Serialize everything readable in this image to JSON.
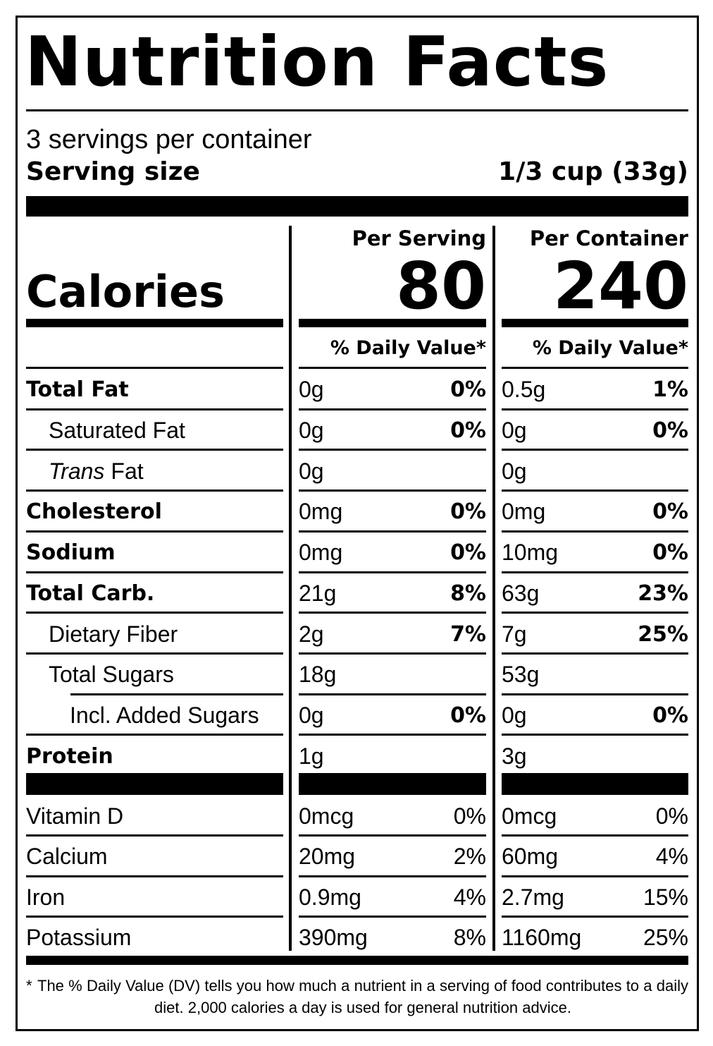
{
  "title": "Nutrition Facts",
  "servings": "3 servings per container",
  "serving_size": {
    "label": "Serving size",
    "value": "1/3 cup (33g)"
  },
  "calories": {
    "label": "Calories",
    "columns": [
      {
        "header": "Per Serving",
        "value": "80",
        "dv_header": "% Daily Value*"
      },
      {
        "header": "Per Container",
        "value": "240",
        "dv_header": "% Daily Value*"
      }
    ]
  },
  "nutrients": [
    {
      "name": "Total Fat",
      "columns": [
        {
          "amount": "0g",
          "dv": "0%"
        },
        {
          "amount": "0.5g",
          "dv": "1%"
        }
      ]
    },
    {
      "name": "Saturated Fat",
      "columns": [
        {
          "amount": "0g",
          "dv": "0%"
        },
        {
          "amount": "0g",
          "dv": "0%"
        }
      ]
    },
    {
      "name_italic": "Trans",
      "name": "Fat",
      "columns": [
        {
          "amount": "0g"
        },
        {
          "amount": "0g"
        }
      ]
    },
    {
      "name": "Cholesterol",
      "columns": [
        {
          "amount": "0mg",
          "dv": "0%"
        },
        {
          "amount": "0mg",
          "dv": "0%"
        }
      ]
    },
    {
      "name": "Sodium",
      "columns": [
        {
          "amount": "0mg",
          "dv": "0%"
        },
        {
          "amount": "10mg",
          "dv": "0%"
        }
      ]
    },
    {
      "name": "Total Carb.",
      "columns": [
        {
          "amount": "21g",
          "dv": "8%"
        },
        {
          "amount": "63g",
          "dv": "23%"
        }
      ]
    },
    {
      "name": "Dietary Fiber",
      "columns": [
        {
          "amount": "2g",
          "dv": "7%"
        },
        {
          "amount": "7g",
          "dv": "25%"
        }
      ]
    },
    {
      "name": "Total Sugars",
      "columns": [
        {
          "amount": "18g"
        },
        {
          "amount": "53g"
        }
      ]
    },
    {
      "name": "Incl. Added Sugars",
      "columns": [
        {
          "amount": "0g",
          "dv": "0%"
        },
        {
          "amount": "0g",
          "dv": "0%"
        }
      ]
    },
    {
      "name": "Protein",
      "columns": [
        {
          "amount": "1g"
        },
        {
          "amount": "3g"
        }
      ]
    }
  ],
  "vitamins": [
    {
      "name": "Vitamin D",
      "columns": [
        {
          "amount": "0mcg",
          "dv": "0%"
        },
        {
          "amount": "0mcg",
          "dv": "0%"
        }
      ]
    },
    {
      "name": "Calcium",
      "columns": [
        {
          "amount": "20mg",
          "dv": "2%"
        },
        {
          "amount": "60mg",
          "dv": "4%"
        }
      ]
    },
    {
      "name": "Iron",
      "columns": [
        {
          "amount": "0.9mg",
          "dv": "4%"
        },
        {
          "amount": "2.7mg",
          "dv": "15%"
        }
      ]
    },
    {
      "name": "Potassium",
      "columns": [
        {
          "amount": "390mg",
          "dv": "8%"
        },
        {
          "amount": "1160mg",
          "dv": "25%"
        }
      ]
    }
  ],
  "footnote": {
    "mark": "*",
    "text": "The % Daily Value (DV) tells you how much a nutrient in a serving of food contributes to a daily diet. 2,000 calories a day is used for general nutrition advice."
  }
}
